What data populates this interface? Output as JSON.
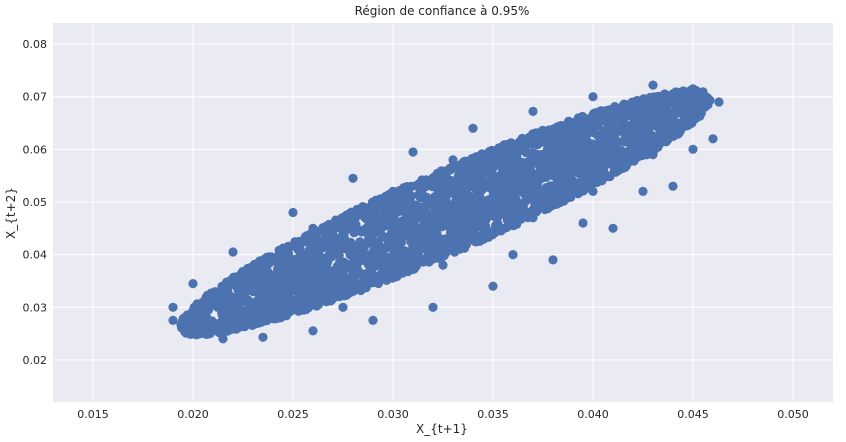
{
  "chart_data": {
    "type": "scatter",
    "title": "Région de confiance à 0.95%",
    "xlabel": "X_{t+1}",
    "ylabel": "X_{t+2}",
    "xlim": [
      0.013,
      0.052
    ],
    "ylim": [
      0.012,
      0.084
    ],
    "xticks": [
      0.015,
      0.02,
      0.025,
      0.03,
      0.035,
      0.04,
      0.045,
      0.05
    ],
    "xtick_labels": [
      "0.015",
      "0.020",
      "0.025",
      "0.030",
      "0.035",
      "0.040",
      "0.045",
      "0.050"
    ],
    "yticks": [
      0.02,
      0.03,
      0.04,
      0.05,
      0.06,
      0.07,
      0.08
    ],
    "ytick_labels": [
      "0.02",
      "0.03",
      "0.04",
      "0.05",
      "0.06",
      "0.07",
      "0.08"
    ],
    "grid": true,
    "background": "#eaeaf2",
    "grid_color": "#ffffff",
    "point_color": "#4c72b0",
    "region": {
      "shape": "ellipse",
      "center": [
        0.03263,
        0.04798
      ],
      "axis_end_1": [
        0.0457,
        0.0708
      ],
      "axis_end_2": [
        0.0302,
        0.0522
      ]
    },
    "series": [
      {
        "values": [
          [
            0.019,
            0.0275
          ],
          [
            0.02,
            0.025
          ],
          [
            0.0215,
            0.024
          ],
          [
            0.0235,
            0.0243
          ],
          [
            0.026,
            0.0255
          ],
          [
            0.029,
            0.0275
          ],
          [
            0.032,
            0.03
          ],
          [
            0.035,
            0.034
          ],
          [
            0.038,
            0.039
          ],
          [
            0.041,
            0.045
          ],
          [
            0.044,
            0.053
          ],
          [
            0.046,
            0.062
          ],
          [
            0.0463,
            0.069
          ],
          [
            0.045,
            0.0715
          ],
          [
            0.043,
            0.0722
          ],
          [
            0.04,
            0.07
          ],
          [
            0.037,
            0.0672
          ],
          [
            0.034,
            0.064
          ],
          [
            0.031,
            0.0595
          ],
          [
            0.028,
            0.0545
          ],
          [
            0.025,
            0.048
          ],
          [
            0.022,
            0.0405
          ],
          [
            0.02,
            0.0345
          ],
          [
            0.019,
            0.03
          ],
          [
            0.023,
            0.033
          ],
          [
            0.026,
            0.039
          ],
          [
            0.03,
            0.045
          ],
          [
            0.033,
            0.048
          ],
          [
            0.036,
            0.053
          ],
          [
            0.039,
            0.058
          ],
          [
            0.042,
            0.064
          ],
          [
            0.028,
            0.04
          ],
          [
            0.031,
            0.041
          ],
          [
            0.035,
            0.05
          ],
          [
            0.038,
            0.055
          ],
          [
            0.025,
            0.035
          ],
          [
            0.027,
            0.033
          ],
          [
            0.03,
            0.036
          ],
          [
            0.034,
            0.043
          ],
          [
            0.037,
            0.047
          ],
          [
            0.04,
            0.052
          ],
          [
            0.043,
            0.059
          ],
          [
            0.044,
            0.067
          ],
          [
            0.041,
            0.067
          ],
          [
            0.038,
            0.063
          ],
          [
            0.035,
            0.058
          ],
          [
            0.032,
            0.054
          ],
          [
            0.029,
            0.05
          ],
          [
            0.026,
            0.045
          ],
          [
            0.0235,
            0.039
          ],
          [
            0.0215,
            0.03
          ],
          [
            0.0245,
            0.03
          ],
          [
            0.0275,
            0.03
          ],
          [
            0.0325,
            0.038
          ],
          [
            0.036,
            0.04
          ],
          [
            0.0395,
            0.046
          ],
          [
            0.0425,
            0.052
          ],
          [
            0.045,
            0.06
          ],
          [
            0.033,
            0.058
          ],
          [
            0.03,
            0.052
          ]
        ]
      }
    ]
  }
}
